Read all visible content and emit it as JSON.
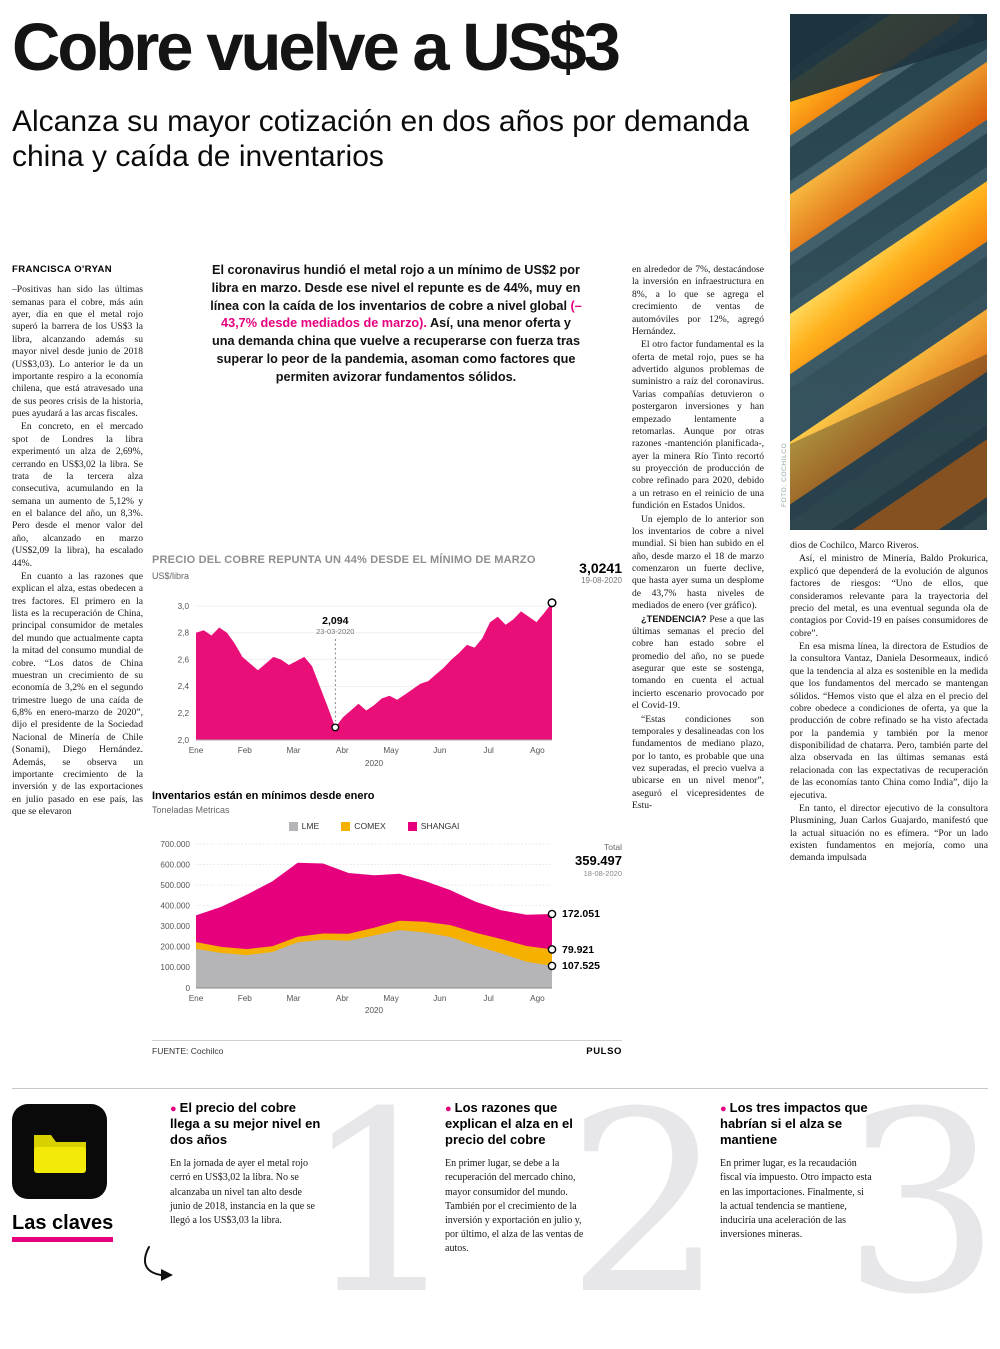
{
  "accent_color": "#e6007e",
  "header": {
    "headline": "Cobre vuelve a US$3",
    "subheadline": "Alcanza su mayor cotización en dos años por demanda china y caída de inventarios",
    "byline": "FRANCISCA O'RYAN",
    "photo_credit": "FOTO: COCHILCO"
  },
  "intro": {
    "part1": "El coronavirus hundió el metal rojo a un mínimo de US$2 por libra en marzo. Desde ese nivel el repunte es de 44%, muy en línea con la caída de los inventarios de cobre a nivel global ",
    "highlight": "(–43,7% desde mediados de marzo).",
    "part2": " Así, una menor oferta y una demanda china que vuelve a recuperarse con fuerza tras superar lo peor de la pandemia, asoman como factores que permiten avizorar fundamentos sólidos."
  },
  "columns": {
    "col1": {
      "p1": "–Positivas han sido las últimas semanas para el cobre, más aún ayer, día en que el metal rojo superó la barrera de los US$3 la libra, alcanzando además su mayor nivel desde junio de 2018 (US$3,03). Lo anterior le da un importante respiro a la economía chilena, que está atravesado una de sus peores crisis de la historia, pues ayudará a las arcas fiscales.",
      "p2": "En concreto, en el mercado spot de Londres la libra experimentó un alza de 2,69%, cerrando en US$3,02 la libra. Se trata de la tercera alza consecutiva, acumulando en la semana un aumento de 5,12% y en el balance del año, un 8,3%. Pero desde el menor valor del año, alcanzado en marzo (US$2,09 la libra), ha escalado 44%.",
      "p3": "En cuanto a las razones que explican el alza, estas obedecen a tres factores. El primero en la lista es la recuperación de China, principal consumidor de metales del mundo que actualmente capta la mitad del consumo mundial de cobre. “Los datos de China muestran un crecimiento de su economía de 3,2% en el segundo trimestre luego de una caída de 6,8% en enero-marzo de 2020”, dijo el presidente de la Sociedad Nacional de Minería de Chile (Sonami), Diego Hernández. Además, se observa un importante crecimiento de la inversión y de las exportaciones en julio pasado en ese país, las que se elevaron"
    },
    "col4": {
      "p1": "en alrededor de 7%, destacándose la inversión en infraestructura en 8%, a lo que se agrega el crecimiento de ventas de automóviles por 12%, agregó Hernández.",
      "p2": "El otro factor fundamental es la oferta de metal rojo, pues se ha advertido algunos problemas de suministro a raíz del coronavirus. Varias compañías detuvieron o postergaron inversiones y han empezado lentamente a retomarlas. Aunque por otras razones -mantención planificada-, ayer la minera Río Tinto recortó su proyección de producción de cobre refinado para 2020, debido a un retraso en el reinicio de una fundición en Estados Unidos.",
      "p3": "Un ejemplo de lo anterior son los inventarios de cobre a nivel mundial. Si bien han subido en el año, desde marzo el 18 de marzo comenzaron un fuerte declive, que hasta ayer suma un desplome de 43,7% hasta niveles de mediados de enero (ver gráfico).",
      "p4_lead": "¿TENDENCIA?",
      "p4_rest": " Pese a que las últimas semanas el precio del cobre han estado sobre el promedio del año, no se puede asegurar que este se sostenga, tomando en cuenta el actual incierto escenario provocado por el Covid-19.",
      "p5": "“Estas condiciones son temporales y desalineadas con los fundamentos de mediano plazo, por lo tanto, es probable que una vez superadas, el precio vuelva a ubicarse en un nivel menor”, aseguró el vicepresidentes de Estu-"
    },
    "col5": {
      "p1": "dios de Cochilco, Marco Riveros.",
      "p2": "Así, el ministro de Minería, Baldo Prokurica, explicó que dependerá de la evolución de algunos factores de riesgos: “Uno de ellos, que consideramos relevante para la trayectoria del precio del metal, es una eventual segunda ola de contagios por Covid-19 en países consumidores de cobre”.",
      "p3": "En esa misma línea, la directora de Estudios de la consultora Vantaz, Daniela Desormeaux, indicó que la tendencia al alza es sostenible en la medida que los fundamentos del mercado se mantengan sólidos. “Hemos visto que el alza en el precio del cobre obedece a condiciones de oferta, ya que la producción de cobre refinado se ha visto afectada por la pandemia y también por la menor disponibilidad de chatarra. Pero, también parte del alza observada en las últimas semanas está relacionada con las expectativas de recuperación de las economías tanto China como India”, dijo la ejecutiva.",
      "p4": "En tanto, el director ejecutivo de la consultora Plusmining, Juan Carlos Guajardo, manifestó que la actual situación no es efímera. “Por un lado existen fundamentos en mejoría, como una demanda impulsada"
    }
  },
  "chart_data": [
    {
      "type": "area",
      "title": "PRECIO DEL COBRE REPUNTA UN 44% DESDE EL MÍNIMO DE MARZO",
      "ylabel": "US$/libra",
      "color": "#ea0f78",
      "ylim": [
        2.0,
        3.06
      ],
      "y_ticks": [
        {
          "v": 3.0,
          "label": "3,0"
        },
        {
          "v": 2.8,
          "label": "2,8"
        },
        {
          "v": 2.6,
          "label": "2,6"
        },
        {
          "v": 2.4,
          "label": "2,4"
        },
        {
          "v": 2.2,
          "label": "2,2"
        },
        {
          "v": 2.0,
          "label": "2,0"
        }
      ],
      "x_tick_labels": [
        "Ene",
        "Feb",
        "Mar",
        "Abr",
        "May",
        "Jun",
        "Jul",
        "Ago"
      ],
      "x_axis_year": "2020",
      "values": [
        2.8,
        2.82,
        2.78,
        2.84,
        2.8,
        2.72,
        2.62,
        2.57,
        2.52,
        2.57,
        2.62,
        2.6,
        2.56,
        2.59,
        2.62,
        2.55,
        2.4,
        2.25,
        2.094,
        2.17,
        2.22,
        2.27,
        2.22,
        2.26,
        2.31,
        2.33,
        2.3,
        2.34,
        2.38,
        2.42,
        2.44,
        2.49,
        2.54,
        2.6,
        2.65,
        2.71,
        2.69,
        2.76,
        2.88,
        2.92,
        2.86,
        2.9,
        2.96,
        2.92,
        2.88,
        2.95,
        3.0241
      ],
      "annotations": [
        {
          "label": "2,094",
          "sublabel": "23-03-2020",
          "x_index": 18,
          "value": 2.094
        },
        {
          "label": "3,0241",
          "sublabel": "19-08-2020",
          "x_index": 46,
          "value": 3.0241
        }
      ]
    },
    {
      "type": "stacked_area",
      "title": "Inventarios están en mínimos desde enero",
      "ylabel": "Toneladas Metricas",
      "legend": [
        "LME",
        "COMEX",
        "SHANGAI"
      ],
      "colors": {
        "LME": "#b5b5b7",
        "COMEX": "#f6b100",
        "SHANGAI": "#e6007e"
      },
      "ylim": [
        0,
        700000
      ],
      "y_ticks": [
        {
          "v": 700000,
          "label": "700.000"
        },
        {
          "v": 600000,
          "label": "600.000"
        },
        {
          "v": 500000,
          "label": "500.000"
        },
        {
          "v": 400000,
          "label": "400.000"
        },
        {
          "v": 300000,
          "label": "300.000"
        },
        {
          "v": 200000,
          "label": "200.000"
        },
        {
          "v": 100000,
          "label": "100.000"
        },
        {
          "v": 0,
          "label": "0"
        }
      ],
      "x_tick_labels": [
        "Ene",
        "Feb",
        "Mar",
        "Abr",
        "May",
        "Jun",
        "Jul",
        "Ago"
      ],
      "x_axis_year": "2020",
      "series": [
        {
          "name": "LME",
          "values": [
            190000,
            170000,
            160000,
            175000,
            222000,
            235000,
            230000,
            255000,
            282000,
            270000,
            248000,
            205000,
            168000,
            128000,
            107525
          ]
        },
        {
          "name": "COMEX",
          "values": [
            33000,
            30000,
            29000,
            28000,
            27000,
            30000,
            34000,
            38000,
            45000,
            52000,
            58000,
            64000,
            70000,
            76000,
            79921
          ]
        },
        {
          "name": "SHANGAI",
          "values": [
            130000,
            195000,
            265000,
            315000,
            360000,
            340000,
            295000,
            255000,
            228000,
            198000,
            170000,
            150000,
            140000,
            152000,
            172051
          ]
        }
      ],
      "total_label": {
        "label": "Total",
        "value": "359.497",
        "date": "18-08-2020"
      },
      "end_markers": [
        {
          "label": "172.051",
          "series": "SHANGAI"
        },
        {
          "label": "79.921",
          "series": "COMEX"
        },
        {
          "label": "107.525",
          "series": "LME"
        }
      ],
      "source": "FUENTE: Cochilco",
      "brand": "PULSO"
    }
  ],
  "claves": {
    "section_label": "Las claves",
    "items": [
      {
        "number": "1",
        "title": "El precio del cobre llega a su mejor nivel en dos años",
        "body": "En la jornada de ayer el metal rojo cerró en US$3,02 la libra. No se alcanzaba un nivel tan alto desde junio de 2018, instancia en la que se llegó a los US$3,03 la libra."
      },
      {
        "number": "2",
        "title": "Los razones que explican el alza en el precio del cobre",
        "body": "En primer lugar, se debe a la recuperación del mercado chino, mayor consumidor del mundo. También por el crecimiento de la inversión y exportación en julio y, por último, el alza de las ventas de autos."
      },
      {
        "number": "3",
        "title": "Los tres impactos que habrían si el alza se mantiene",
        "body": "En primer lugar, es la recaudación fiscal vía impuesto. Otro impacto esta en las importaciones. Finalmente, si la actual tendencia se mantiene, induciría una aceleración de las inversiones mineras."
      }
    ]
  }
}
